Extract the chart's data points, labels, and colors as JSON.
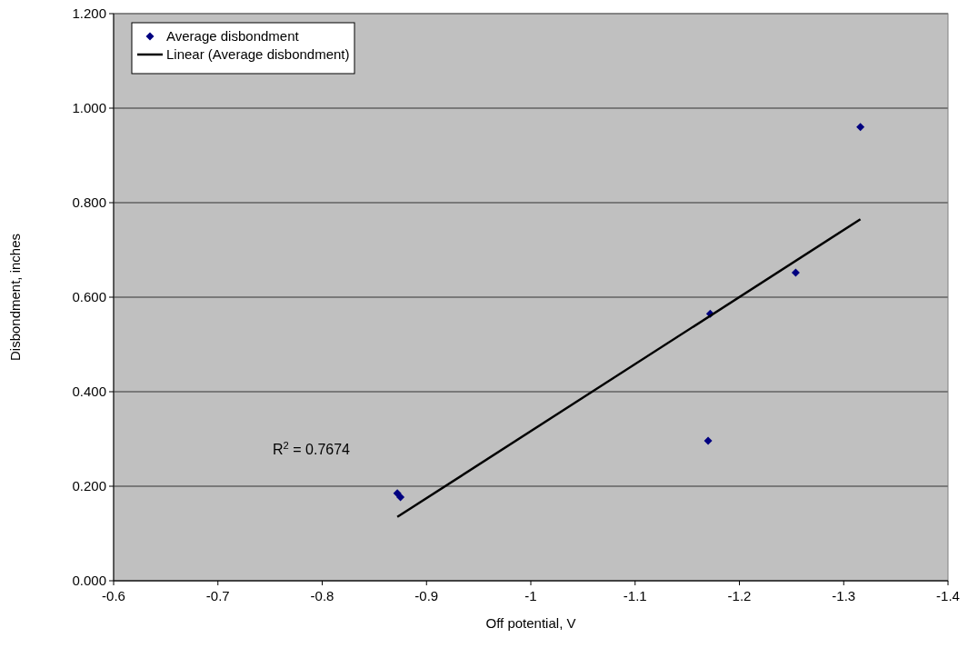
{
  "chart_data": {
    "type": "scatter",
    "xlabel": "Off potential, V",
    "ylabel": "Disbondment, inches",
    "xlim": [
      -0.6,
      -1.4
    ],
    "xticks": [
      -0.6,
      -0.7,
      -0.8,
      -0.9,
      -1,
      -1.1,
      -1.2,
      -1.3,
      -1.4
    ],
    "ylim": [
      0,
      1.2
    ],
    "yticks": [
      {
        "value": 0,
        "label": "0.000"
      },
      {
        "value": 0.2,
        "label": "0.200"
      },
      {
        "value": 0.4,
        "label": "0.400"
      },
      {
        "value": 0.6,
        "label": "0.600"
      },
      {
        "value": 0.8,
        "label": "0.800"
      },
      {
        "value": 1,
        "label": "1.000"
      },
      {
        "value": 1.2,
        "label": "1.200"
      }
    ],
    "grid": "y",
    "legend": "top left",
    "annotations": [
      "R$^{2}$ = 0.7674"
    ],
    "series": [
      {
        "name": "Average disbondment",
        "color": "#000080",
        "marker": "diamond",
        "x": [
          -0.872,
          -0.875,
          -1.17,
          -1.172,
          -1.254,
          -1.316
        ],
        "values": [
          0.185,
          0.177,
          0.296,
          0.565,
          0.652,
          0.96
        ]
      },
      {
        "name": "Linear (Average disbondment)",
        "type": "line",
        "color": "#000000",
        "line_style": "solid",
        "marker": "none",
        "x": [
          -0.872,
          -1.316
        ],
        "values": [
          0.135,
          0.765
        ]
      }
    ]
  }
}
